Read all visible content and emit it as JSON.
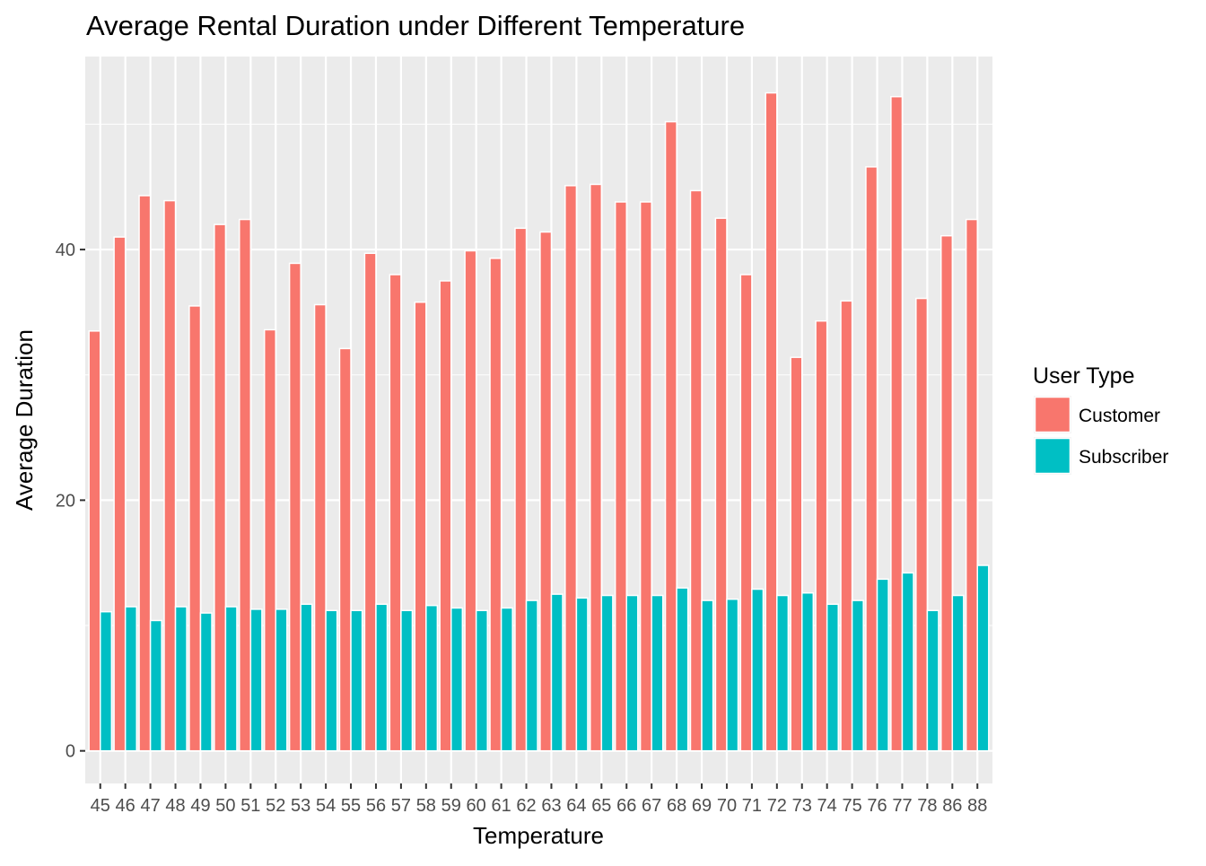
{
  "chart_data": {
    "type": "bar",
    "stacked": false,
    "title": "Average Rental Duration under Different Temperature",
    "xlabel": "Temperature",
    "ylabel": "Average Duration",
    "ylim": [
      -2.6,
      55.4
    ],
    "yticks": [
      0,
      20,
      40
    ],
    "grid": true,
    "legend": {
      "title": "User Type",
      "placement": "right",
      "entries": [
        "Customer",
        "Subscriber"
      ]
    },
    "categories": [
      "45",
      "46",
      "47",
      "48",
      "49",
      "50",
      "51",
      "52",
      "53",
      "54",
      "55",
      "56",
      "57",
      "58",
      "59",
      "60",
      "61",
      "62",
      "63",
      "64",
      "65",
      "66",
      "67",
      "68",
      "69",
      "70",
      "71",
      "72",
      "73",
      "74",
      "75",
      "76",
      "77",
      "78",
      "86",
      "88"
    ],
    "series": [
      {
        "name": "Customer",
        "color": "#F8766D",
        "values": [
          33.5,
          41.0,
          44.3,
          43.9,
          35.5,
          42.0,
          42.4,
          33.6,
          38.9,
          35.6,
          32.1,
          39.7,
          38.0,
          35.8,
          37.5,
          39.9,
          39.3,
          41.7,
          41.4,
          45.1,
          45.2,
          43.8,
          43.8,
          50.2,
          44.7,
          42.5,
          38.0,
          52.5,
          31.4,
          34.3,
          35.9,
          46.6,
          52.2,
          36.1,
          41.1,
          42.4
        ]
      },
      {
        "name": "Subscriber",
        "color": "#00BFC4",
        "values": [
          11.1,
          11.5,
          10.4,
          11.5,
          11.0,
          11.5,
          11.3,
          11.3,
          11.7,
          11.2,
          11.2,
          11.7,
          11.2,
          11.6,
          11.4,
          11.2,
          11.4,
          12.0,
          12.5,
          12.2,
          12.4,
          12.4,
          12.4,
          13.0,
          12.0,
          12.1,
          12.9,
          12.4,
          12.6,
          11.7,
          12.0,
          13.7,
          14.2,
          11.2,
          12.4,
          14.8
        ]
      }
    ]
  }
}
